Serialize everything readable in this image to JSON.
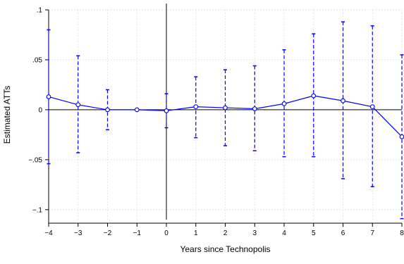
{
  "chart_data": {
    "type": "line",
    "title": "",
    "xlabel": "Years since Technopolis",
    "ylabel": "Estimated ATTs",
    "xlim": [
      -4,
      8
    ],
    "ylim": [
      -0.11,
      0.1
    ],
    "x_ticks": [
      {
        "value": -4,
        "label": "−4"
      },
      {
        "value": -3,
        "label": "−3"
      },
      {
        "value": -2,
        "label": "−2"
      },
      {
        "value": -1,
        "label": "−1"
      },
      {
        "value": 0,
        "label": "0"
      },
      {
        "value": 1,
        "label": "1"
      },
      {
        "value": 2,
        "label": "2"
      },
      {
        "value": 3,
        "label": "3"
      },
      {
        "value": 4,
        "label": "4"
      },
      {
        "value": 5,
        "label": "5"
      },
      {
        "value": 6,
        "label": "6"
      },
      {
        "value": 7,
        "label": "7"
      },
      {
        "value": 8,
        "label": "8"
      }
    ],
    "y_ticks": [
      {
        "value": 0.1,
        "label": ".1"
      },
      {
        "value": 0.05,
        "label": ".05"
      },
      {
        "value": 0,
        "label": "0"
      },
      {
        "value": -0.05,
        "label": "−.05"
      },
      {
        "value": -0.1,
        "label": "−.1"
      }
    ],
    "grid": true,
    "reference_lines": {
      "x": 0,
      "y": 0
    },
    "series_color": "#0000ff",
    "series": [
      {
        "x": [
          -4,
          -3,
          -2,
          -1,
          0,
          1,
          2,
          3,
          4,
          5,
          6,
          7,
          8
        ],
        "y": [
          0.013,
          0.005,
          0.0,
          0.0,
          -0.001,
          0.003,
          0.002,
          0.001,
          0.006,
          0.014,
          0.009,
          0.003,
          -0.027
        ],
        "ci_low": [
          -0.054,
          -0.043,
          -0.02,
          0.0,
          -0.018,
          -0.028,
          -0.036,
          -0.041,
          -0.047,
          -0.047,
          -0.069,
          -0.077,
          -0.109
        ],
        "ci_high": [
          0.08,
          0.054,
          0.02,
          0.0,
          0.016,
          0.033,
          0.04,
          0.044,
          0.06,
          0.076,
          0.088,
          0.084,
          0.055
        ]
      }
    ]
  }
}
